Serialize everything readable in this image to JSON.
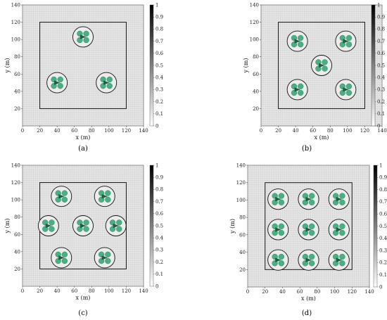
{
  "chart_data": [
    {
      "type": "scatter",
      "caption": "(a)",
      "xlabel": "x (m)",
      "ylabel": "y (m)",
      "xlim": [
        0,
        140
      ],
      "ylim": [
        0,
        140
      ],
      "xticks": [
        "0",
        "20",
        "40",
        "60",
        "80",
        "100",
        "120",
        "140"
      ],
      "yticks": [
        "20",
        "40",
        "60",
        "80",
        "100",
        "120",
        "140"
      ],
      "grid": true,
      "area_box": [
        [
          20,
          20
        ],
        [
          120,
          120
        ]
      ],
      "clusters": [
        {
          "x": 70,
          "y": 103
        },
        {
          "x": 40,
          "y": 50
        },
        {
          "x": 97,
          "y": 50
        }
      ],
      "colorbar": {
        "ticks": [
          "0",
          "0.1",
          "0.2",
          "0.3",
          "0.4",
          "0.5",
          "0.6",
          "0.7",
          "0.8",
          "0.9",
          "1"
        ]
      }
    },
    {
      "type": "scatter",
      "caption": "(b)",
      "xlabel": "x (m)",
      "ylabel": "y (m)",
      "xlim": [
        0,
        140
      ],
      "ylim": [
        0,
        140
      ],
      "xticks": [
        "0",
        "20",
        "40",
        "60",
        "80",
        "100",
        "120",
        "140"
      ],
      "yticks": [
        "20",
        "40",
        "60",
        "80",
        "100",
        "120",
        "140"
      ],
      "grid": true,
      "area_box": [
        [
          20,
          20
        ],
        [
          120,
          120
        ]
      ],
      "clusters": [
        {
          "x": 42,
          "y": 98
        },
        {
          "x": 98,
          "y": 98
        },
        {
          "x": 70,
          "y": 70
        },
        {
          "x": 42,
          "y": 42
        },
        {
          "x": 98,
          "y": 42
        }
      ],
      "colorbar": {
        "ticks": [
          "0",
          "0.1",
          "0.2",
          "0.3",
          "0.4",
          "0.5",
          "0.6",
          "0.7",
          "0.8",
          "0.9",
          "1"
        ]
      }
    },
    {
      "type": "scatter",
      "caption": "(c)",
      "xlabel": "x (m)",
      "ylabel": "y (m)",
      "xlim": [
        0,
        140
      ],
      "ylim": [
        0,
        140
      ],
      "xticks": [
        "0",
        "20",
        "40",
        "60",
        "80",
        "100",
        "120",
        "140"
      ],
      "yticks": [
        "20",
        "40",
        "60",
        "80",
        "100",
        "120",
        "140"
      ],
      "grid": true,
      "area_box": [
        [
          20,
          20
        ],
        [
          120,
          120
        ]
      ],
      "clusters": [
        {
          "x": 45,
          "y": 104
        },
        {
          "x": 95,
          "y": 104
        },
        {
          "x": 30,
          "y": 70
        },
        {
          "x": 70,
          "y": 70
        },
        {
          "x": 108,
          "y": 70
        },
        {
          "x": 45,
          "y": 33
        },
        {
          "x": 95,
          "y": 33
        }
      ],
      "colorbar": {
        "ticks": [
          "0",
          "0.1",
          "0.2",
          "0.3",
          "0.4",
          "0.5",
          "0.6",
          "0.7",
          "0.8",
          "0.9",
          "1"
        ]
      }
    },
    {
      "type": "scatter",
      "caption": "(d)",
      "xlabel": "x (m)",
      "ylabel": "y (m)",
      "xlim": [
        0,
        140
      ],
      "ylim": [
        0,
        140
      ],
      "xticks": [
        "0",
        "20",
        "40",
        "60",
        "80",
        "100",
        "120",
        "140"
      ],
      "yticks": [
        "20",
        "40",
        "60",
        "80",
        "100",
        "120",
        "140"
      ],
      "grid": true,
      "area_box": [
        [
          20,
          20
        ],
        [
          120,
          120
        ]
      ],
      "clusters": [
        {
          "x": 35,
          "y": 101
        },
        {
          "x": 70,
          "y": 101
        },
        {
          "x": 105,
          "y": 101
        },
        {
          "x": 35,
          "y": 66
        },
        {
          "x": 70,
          "y": 66
        },
        {
          "x": 105,
          "y": 66
        },
        {
          "x": 35,
          "y": 31
        },
        {
          "x": 70,
          "y": 31
        },
        {
          "x": 105,
          "y": 31
        }
      ],
      "colorbar": {
        "ticks": [
          "0",
          "0.1",
          "0.2",
          "0.3",
          "0.4",
          "0.5",
          "0.6",
          "0.7",
          "0.8",
          "0.9",
          "1"
        ]
      }
    }
  ],
  "colors": {
    "background": "#e6e6e6",
    "grid": "#c8c8c8",
    "box": "#111111",
    "disk_fill": "#4caf84",
    "disk_stroke": "#1e7a52",
    "cluster_ring": "#111111",
    "arrow": "#1f5f3f"
  }
}
